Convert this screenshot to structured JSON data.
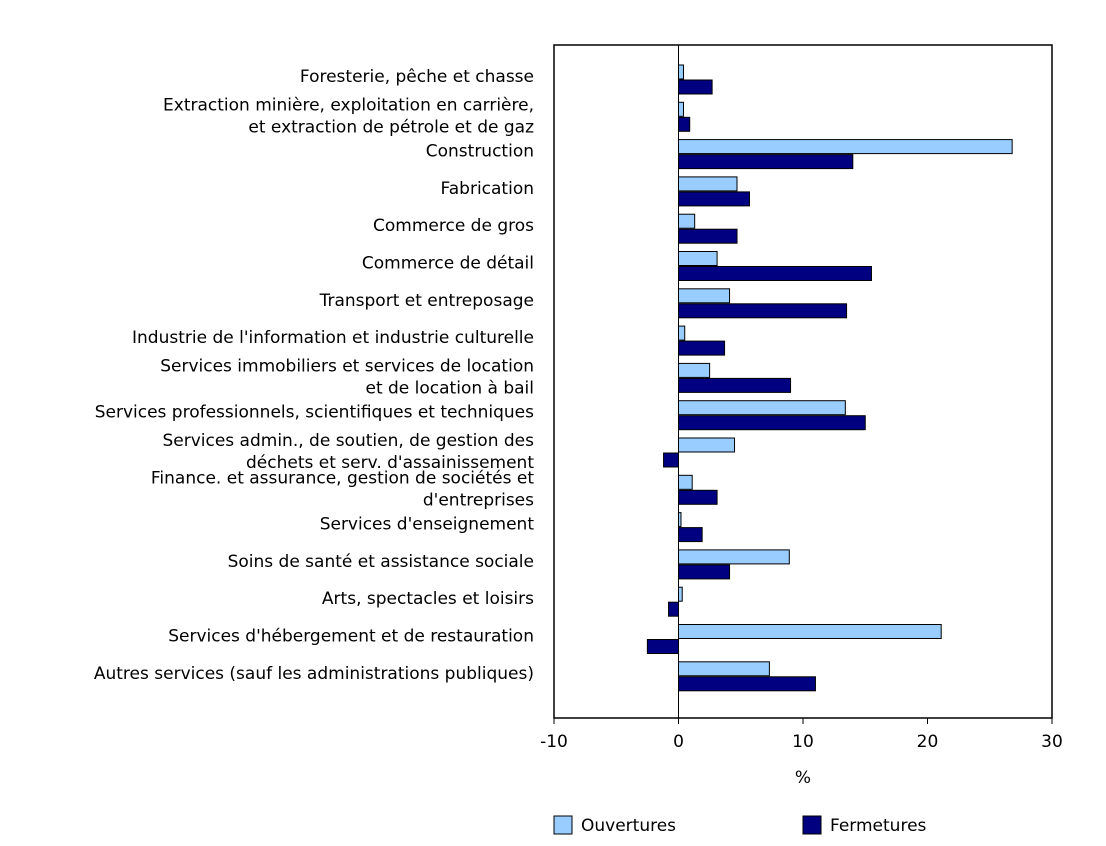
{
  "chart_data": {
    "type": "bar",
    "orientation": "horizontal",
    "categories": [
      "Foresterie, pêche et chasse",
      "Extraction minière, exploitation en carrière,\net extraction de pétrole et de gaz",
      "Construction",
      "Fabrication",
      "Commerce de gros",
      "Commerce de détail",
      "Transport et entreposage",
      "Industrie de l'information et industrie culturelle",
      "Services immobiliers et services de location\net de location à bail",
      "Services professionnels, scientifiques et techniques",
      "Services admin., de soutien, de gestion des\ndéchets et serv. d'assainissement",
      "Finance. et assurance, gestion de sociétés et\nd'entreprises",
      "Services d'enseignement",
      "Soins de santé et assistance sociale",
      "Arts, spectacles et loisirs",
      "Services d'hébergement et de restauration",
      "Autres services (sauf les administrations publiques)"
    ],
    "series": [
      {
        "name": "Ouvertures",
        "color": "#99ccff",
        "values": [
          0.4,
          0.4,
          26.8,
          4.7,
          1.3,
          3.1,
          4.1,
          0.5,
          2.5,
          13.4,
          4.5,
          1.1,
          0.2,
          8.9,
          0.3,
          21.1,
          7.3
        ]
      },
      {
        "name": "Fermetures",
        "color": "#000080",
        "values": [
          2.7,
          0.9,
          14.0,
          5.7,
          4.7,
          15.5,
          13.5,
          3.7,
          9.0,
          15.0,
          -1.2,
          3.1,
          1.9,
          4.1,
          -0.8,
          -2.5,
          11.0
        ]
      }
    ],
    "x_label": "%",
    "xlim": [
      -10,
      30
    ],
    "xticks": [
      -10,
      0,
      10,
      20,
      30
    ],
    "grid": false
  }
}
